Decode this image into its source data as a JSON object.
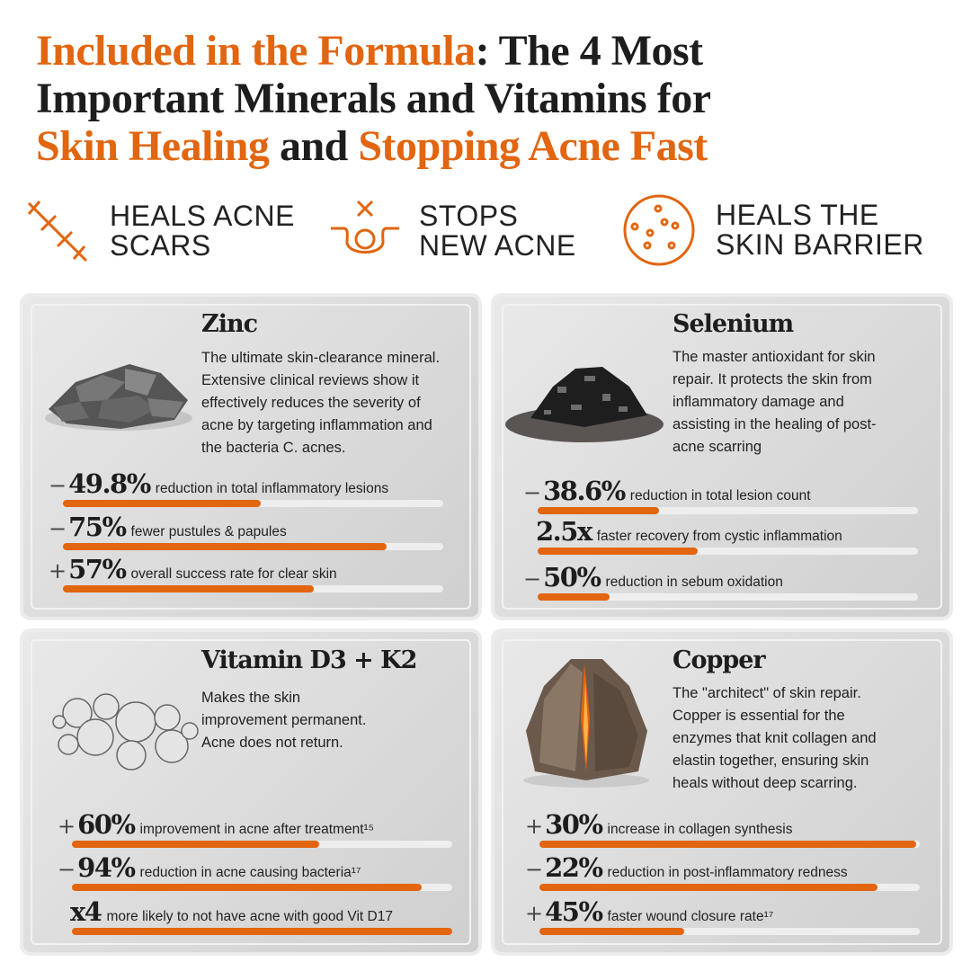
{
  "header": {
    "line1_accent": "Included in the Formula",
    "line1_rest": ": The 4 Most",
    "line2": "Important Minerals and Vitamins for",
    "line3_accent1": "Skin Healing",
    "line3_mid": " and ",
    "line3_accent2": "Stopping Acne Fast"
  },
  "colors": {
    "accent": "#e2650f",
    "text": "#1d1d1d",
    "bar_track": "#eeeeee"
  },
  "benefits": [
    {
      "icon": "crosshatch-scar-icon",
      "line1": "HEALS ACNE",
      "line2": "SCARS"
    },
    {
      "icon": "pore-blemish-icon",
      "line1": "STOPS",
      "line2": "NEW ACNE"
    },
    {
      "icon": "skin-cells-icon",
      "line1": "HEALS THE",
      "line2": "SKIN BARRIER"
    }
  ],
  "cards": [
    {
      "title": "Zinc",
      "image": "zinc-rocks-image",
      "desc": [
        "The ultimate skin-clearance mineral.",
        "Extensive clinical reviews show it",
        "effectively reduces the severity of",
        "acne by targeting inflammation and",
        "the bacteria C. acnes."
      ],
      "stats": [
        {
          "sign": "−",
          "value": "49.8%",
          "text": "reduction in total inflammatory lesions",
          "fill": 0.52
        },
        {
          "sign": "−",
          "value": "75%",
          "text": "fewer pustules & papules",
          "fill": 0.85
        },
        {
          "sign": "+",
          "value": "57%",
          "text": "overall success rate for clear skin",
          "fill": 0.66
        }
      ]
    },
    {
      "title": "Selenium",
      "image": "selenium-crystals-image",
      "desc": [
        "The master antioxidant for skin",
        "repair. It protects the skin from",
        "inflammatory damage and",
        "assisting in the healing of post-",
        "acne scarring"
      ],
      "stats": [
        {
          "sign": "−",
          "value": "38.6%",
          "text": "reduction in total lesion count",
          "fill": 0.32
        },
        {
          "sign": "",
          "value": "2.5x",
          "text": "faster recovery from cystic inflammation",
          "fill": 0.42
        },
        {
          "sign": "−",
          "value": "50%",
          "text": "reduction in sebum oxidation",
          "fill": 0.19
        }
      ]
    },
    {
      "title": "Vitamin D3 + K2",
      "image": "softgel-capsules-image",
      "desc": [
        "Makes the skin",
        "improvement permanent.",
        "Acne does not return."
      ],
      "stats": [
        {
          "sign": "+",
          "value": "60%",
          "text": "improvement in acne after treatment¹⁵",
          "fill": 0.65
        },
        {
          "sign": "−",
          "value": "94%",
          "text": "reduction in acne causing bacteria¹⁷",
          "fill": 0.92
        },
        {
          "sign": "",
          "value": "x4",
          "text": "more likely to not have acne with good Vit D17",
          "fill": 1.0
        }
      ]
    },
    {
      "title": "Copper",
      "image": "copper-ore-rock-image",
      "desc": [
        "The \"architect\" of skin repair.",
        "Copper is essential for the",
        "enzymes that knit collagen and",
        "elastin together, ensuring skin",
        "heals without deep scarring."
      ],
      "stats": [
        {
          "sign": "+",
          "value": "30%",
          "text": "increase in collagen synthesis",
          "fill": 0.99
        },
        {
          "sign": "−",
          "value": "22%",
          "text": "reduction in post-inflammatory redness",
          "fill": 0.89
        },
        {
          "sign": "+",
          "value": "45%",
          "text": "faster wound closure rate¹⁷",
          "fill": 0.38
        }
      ]
    }
  ]
}
